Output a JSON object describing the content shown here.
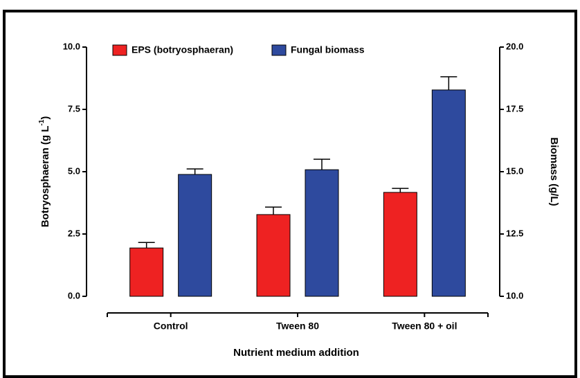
{
  "chart_data": {
    "type": "bar",
    "xlabel": "Nutrient medium addition",
    "ylabel": {
      "text": "Botryosphaeran (g L",
      "sup": "-1",
      "end": ")"
    },
    "y2label": "Biomass (g/L)",
    "categories": [
      "Control",
      "Tween 80",
      "Tween 80 + oil"
    ],
    "series": [
      {
        "name": "EPS (botryosphaeran)",
        "color": "#ee2222",
        "values": [
          1.94,
          3.28,
          4.17
        ],
        "errors": [
          0.22,
          0.3,
          0.16
        ]
      },
      {
        "name": "Fungal biomass",
        "color": "#2e4a9e",
        "axis": "y2",
        "values": [
          14.89,
          15.08,
          18.28
        ],
        "errors": [
          0.22,
          0.42,
          0.53
        ]
      }
    ],
    "ylim": [
      0,
      10
    ],
    "yticks": [
      {
        "value": 0,
        "label": "0.0"
      },
      2.5,
      {
        "value": 5,
        "label": "5.0"
      },
      7.5,
      {
        "value": 10,
        "label": "10.0"
      }
    ],
    "y2lim": [
      10,
      20
    ],
    "y2ticks": [
      {
        "value": 10,
        "label": "10.0"
      },
      12.5,
      {
        "value": 15,
        "label": "15.0"
      },
      17.5,
      {
        "value": 20,
        "label": "20.0"
      }
    ],
    "legend": "top-left"
  }
}
